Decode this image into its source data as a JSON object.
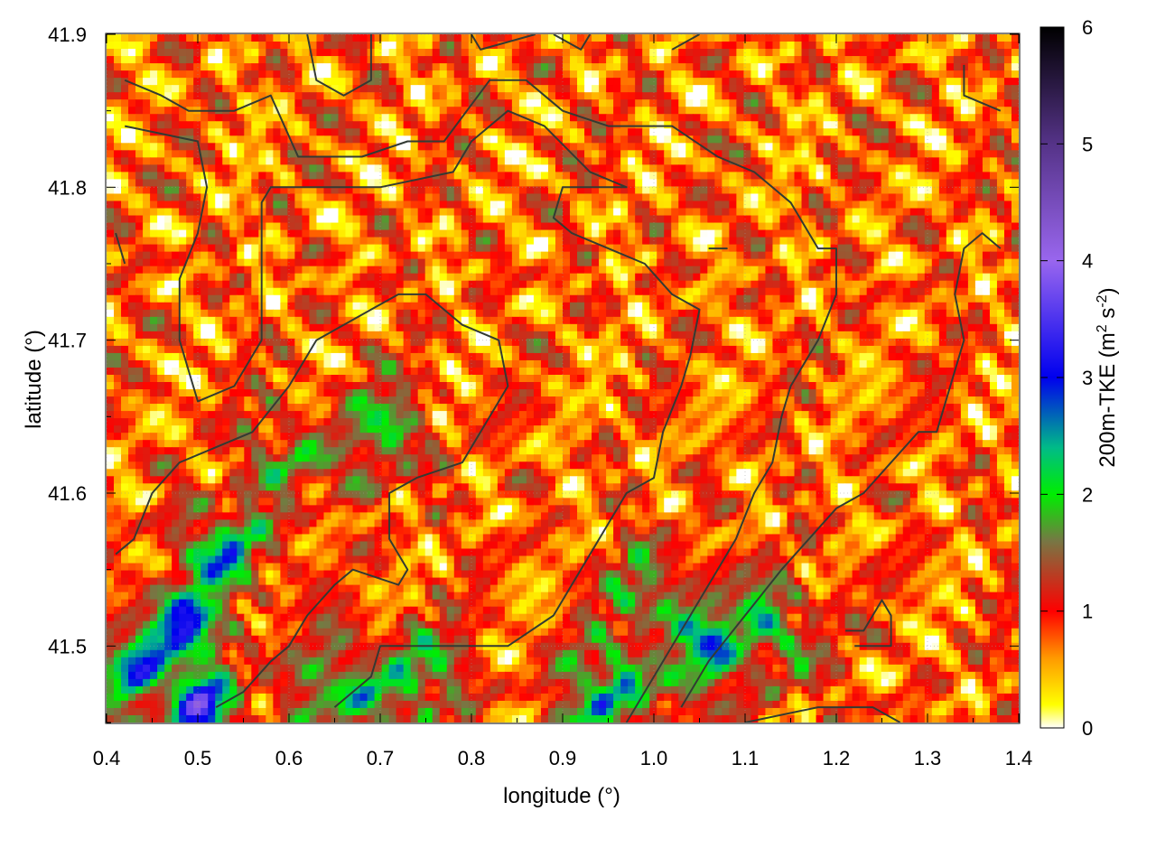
{
  "chart_data": {
    "type": "heatmap",
    "title": "",
    "xlabel": "longitude (°)",
    "ylabel": "latitude (°)",
    "colorbar": {
      "label_main": "200m-TKE (m",
      "label_sup1": "2",
      "label_mid": " s",
      "label_sup2": "-2",
      "label_end": ")",
      "range": [
        0,
        6
      ],
      "ticks": [
        "0",
        "1",
        "2",
        "3",
        "4",
        "5",
        "6"
      ],
      "palette": [
        [
          0,
          "#ffffff"
        ],
        [
          0.2,
          "#ffff00"
        ],
        [
          0.6,
          "#ff9900"
        ],
        [
          1.0,
          "#ff0000"
        ],
        [
          1.6,
          "#777744"
        ],
        [
          2.0,
          "#00ee00"
        ],
        [
          2.4,
          "#00bb88"
        ],
        [
          3.0,
          "#0000ee"
        ],
        [
          4.0,
          "#9966ee"
        ],
        [
          5.0,
          "#553388"
        ],
        [
          6.0,
          "#000000"
        ]
      ]
    },
    "xlim": [
      0.4,
      1.4
    ],
    "ylim": [
      41.45,
      41.9
    ],
    "x_ticks": [
      "0.4",
      "0.5",
      "0.6",
      "0.7",
      "0.8",
      "0.9",
      "1.0",
      "1.1",
      "1.2",
      "1.3",
      "1.4"
    ],
    "y_ticks": [
      "41.5",
      "41.6",
      "41.7",
      "41.8",
      "41.9"
    ],
    "grid": true,
    "field_summary": "200 m turbulent kinetic energy mostly 0–1.5 m2 s-2 (white/yellow/red cells); higher values 2–3 m2 s-2 (green/blue) concentrated in the south-west near 0.45–0.55 E, 41.45–41.58 N and in the south-centre near 0.9–1.15 E, 41.45–41.55 N.",
    "regions": [
      {
        "lon": 0.49,
        "lat": 41.51,
        "value": 3.0
      },
      {
        "lon": 0.44,
        "lat": 41.49,
        "value": 2.9
      },
      {
        "lon": 0.53,
        "lat": 41.56,
        "value": 2.6
      },
      {
        "lon": 0.5,
        "lat": 41.46,
        "value": 3.2
      },
      {
        "lon": 1.05,
        "lat": 41.5,
        "value": 2.8
      },
      {
        "lon": 0.95,
        "lat": 41.47,
        "value": 2.7
      },
      {
        "lon": 1.13,
        "lat": 41.51,
        "value": 2.4
      },
      {
        "lon": 1.0,
        "lat": 41.53,
        "value": 2.2
      },
      {
        "lon": 0.7,
        "lat": 41.64,
        "value": 2.1
      },
      {
        "lon": 0.66,
        "lat": 41.47,
        "value": 2.5
      },
      {
        "lon": 0.6,
        "lat": 41.62,
        "value": 1.9
      },
      {
        "lon": 0.74,
        "lat": 41.48,
        "value": 2.3
      }
    ],
    "boundaries": [
      [
        [
          0.42,
          41.84
        ],
        [
          0.5,
          41.83
        ],
        [
          0.51,
          41.8
        ],
        [
          0.5,
          41.77
        ],
        [
          0.48,
          41.74
        ],
        [
          0.48,
          41.7
        ],
        [
          0.5,
          41.66
        ],
        [
          0.54,
          41.67
        ],
        [
          0.57,
          41.7
        ],
        [
          0.57,
          41.79
        ],
        [
          0.58,
          41.8
        ],
        [
          0.63,
          41.8
        ],
        [
          0.7,
          41.8
        ],
        [
          0.78,
          41.81
        ],
        [
          0.8,
          41.83
        ],
        [
          0.84,
          41.85
        ],
        [
          0.88,
          41.84
        ],
        [
          0.93,
          41.81
        ],
        [
          0.97,
          41.8
        ],
        [
          0.95,
          41.8
        ],
        [
          0.9,
          41.8
        ],
        [
          0.89,
          41.78
        ],
        [
          0.91,
          41.77
        ],
        [
          0.95,
          41.76
        ],
        [
          0.99,
          41.75
        ],
        [
          1.02,
          41.73
        ],
        [
          1.05,
          41.72
        ],
        [
          1.04,
          41.69
        ],
        [
          1.03,
          41.67
        ],
        [
          1.01,
          41.64
        ],
        [
          1.0,
          41.61
        ],
        [
          0.97,
          41.6
        ],
        [
          0.93,
          41.56
        ],
        [
          0.89,
          41.52
        ],
        [
          0.84,
          41.5
        ],
        [
          0.79,
          41.5
        ],
        [
          0.73,
          41.5
        ],
        [
          0.7,
          41.5
        ],
        [
          0.69,
          41.48
        ],
        [
          0.65,
          41.46
        ]
      ],
      [
        [
          0.42,
          41.87
        ],
        [
          0.46,
          41.86
        ],
        [
          0.49,
          41.85
        ],
        [
          0.54,
          41.85
        ],
        [
          0.58,
          41.86
        ],
        [
          0.61,
          41.82
        ],
        [
          0.68,
          41.82
        ],
        [
          0.73,
          41.83
        ],
        [
          0.77,
          41.83
        ],
        [
          0.82,
          41.87
        ],
        [
          0.86,
          41.87
        ],
        [
          0.9,
          41.85
        ],
        [
          0.95,
          41.84
        ],
        [
          1.02,
          41.84
        ],
        [
          1.07,
          41.82
        ],
        [
          1.11,
          41.81
        ],
        [
          1.15,
          41.79
        ],
        [
          1.18,
          41.76
        ],
        [
          1.2,
          41.76
        ],
        [
          1.2,
          41.73
        ],
        [
          1.18,
          41.7
        ],
        [
          1.15,
          41.67
        ],
        [
          1.14,
          41.65
        ],
        [
          1.13,
          41.62
        ],
        [
          1.11,
          41.6
        ],
        [
          1.09,
          41.57
        ],
        [
          1.06,
          41.54
        ],
        [
          1.03,
          41.51
        ],
        [
          1.0,
          41.48
        ],
        [
          0.97,
          41.45
        ]
      ],
      [
        [
          0.41,
          41.56
        ],
        [
          0.43,
          41.57
        ],
        [
          0.45,
          41.6
        ],
        [
          0.48,
          41.62
        ],
        [
          0.52,
          41.63
        ],
        [
          0.56,
          41.64
        ],
        [
          0.6,
          41.67
        ],
        [
          0.63,
          41.7
        ],
        [
          0.66,
          41.71
        ],
        [
          0.69,
          41.72
        ],
        [
          0.72,
          41.73
        ],
        [
          0.75,
          41.73
        ],
        [
          0.79,
          41.71
        ],
        [
          0.83,
          41.7
        ],
        [
          0.84,
          41.67
        ],
        [
          0.81,
          41.64
        ],
        [
          0.79,
          41.62
        ],
        [
          0.74,
          41.61
        ],
        [
          0.71,
          41.6
        ],
        [
          0.71,
          41.57
        ],
        [
          0.73,
          41.55
        ],
        [
          0.72,
          41.54
        ],
        [
          0.67,
          41.55
        ],
        [
          0.65,
          41.54
        ],
        [
          0.62,
          41.52
        ],
        [
          0.6,
          41.5
        ],
        [
          0.58,
          41.49
        ],
        [
          0.55,
          41.47
        ],
        [
          0.52,
          41.46
        ]
      ],
      [
        [
          1.1,
          41.45
        ],
        [
          1.18,
          41.46
        ],
        [
          1.24,
          41.46
        ],
        [
          1.27,
          41.45
        ]
      ],
      [
        [
          1.03,
          41.46
        ],
        [
          1.06,
          41.49
        ],
        [
          1.1,
          41.52
        ],
        [
          1.14,
          41.55
        ],
        [
          1.17,
          41.57
        ],
        [
          1.2,
          41.59
        ],
        [
          1.23,
          41.6
        ],
        [
          1.26,
          41.62
        ],
        [
          1.29,
          41.64
        ],
        [
          1.31,
          41.64
        ],
        [
          1.32,
          41.66
        ],
        [
          1.33,
          41.68
        ],
        [
          1.34,
          41.7
        ],
        [
          1.33,
          41.73
        ],
        [
          1.34,
          41.76
        ],
        [
          1.36,
          41.77
        ],
        [
          1.38,
          41.76
        ]
      ],
      [
        [
          1.34,
          41.88
        ],
        [
          1.34,
          41.86
        ],
        [
          1.38,
          41.85
        ]
      ],
      [
        [
          1.21,
          41.51
        ],
        [
          1.23,
          41.51
        ],
        [
          1.25,
          41.53
        ],
        [
          1.26,
          41.52
        ],
        [
          1.26,
          41.5
        ],
        [
          1.22,
          41.5
        ]
      ],
      [
        [
          1.06,
          41.76
        ],
        [
          1.08,
          41.76
        ],
        [
          1.06,
          41.76
        ]
      ],
      [
        [
          0.62,
          41.9
        ],
        [
          0.63,
          41.87
        ],
        [
          0.66,
          41.86
        ],
        [
          0.69,
          41.87
        ],
        [
          0.69,
          41.9
        ]
      ],
      [
        [
          0.8,
          41.9
        ],
        [
          0.81,
          41.89
        ],
        [
          0.87,
          41.9
        ]
      ],
      [
        [
          0.89,
          41.9
        ],
        [
          0.92,
          41.89
        ],
        [
          0.93,
          41.9
        ]
      ],
      [
        [
          1.02,
          41.89
        ],
        [
          1.05,
          41.9
        ]
      ],
      [
        [
          0.41,
          41.77
        ],
        [
          0.42,
          41.75
        ]
      ]
    ]
  }
}
